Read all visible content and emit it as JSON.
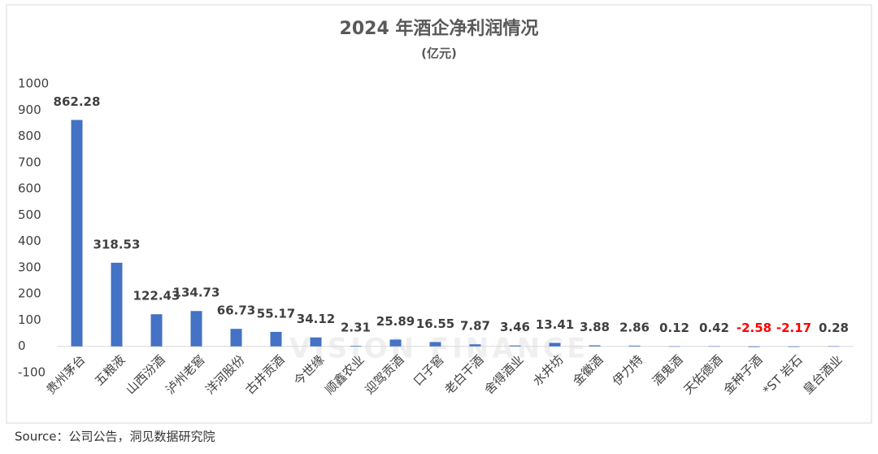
{
  "chart_data": {
    "type": "bar",
    "title": "2024 年酒企净利润情况",
    "subtitle": "(亿元)",
    "source": "Source：公司公告，洞见数据研究院",
    "watermark": "VISION FINANCE",
    "categories": [
      "贵州茅台",
      "五粮液",
      "山西汾酒",
      "泸州老窖",
      "洋河股份",
      "古井贡酒",
      "今世缘",
      "顺鑫农业",
      "迎驾贡酒",
      "口子窖",
      "老白干酒",
      "舍得酒业",
      "水井坊",
      "金徽酒",
      "伊力特",
      "酒鬼酒",
      "天佑德酒",
      "金种子酒",
      "*ST 岩石",
      "皇台酒业"
    ],
    "values": [
      862.28,
      318.53,
      122.43,
      134.73,
      66.73,
      55.17,
      34.12,
      2.31,
      25.89,
      16.55,
      7.87,
      3.46,
      13.41,
      3.88,
      2.86,
      0.12,
      0.42,
      -2.58,
      -2.17,
      0.28
    ],
    "color": "#4472c4",
    "label_color": "#404040",
    "negative_label_color": "#ff0000",
    "ylim": [
      -100,
      1000
    ],
    "yticks": [
      -100,
      0,
      100,
      200,
      300,
      400,
      500,
      600,
      700,
      800,
      900,
      1000
    ],
    "grid": false
  }
}
